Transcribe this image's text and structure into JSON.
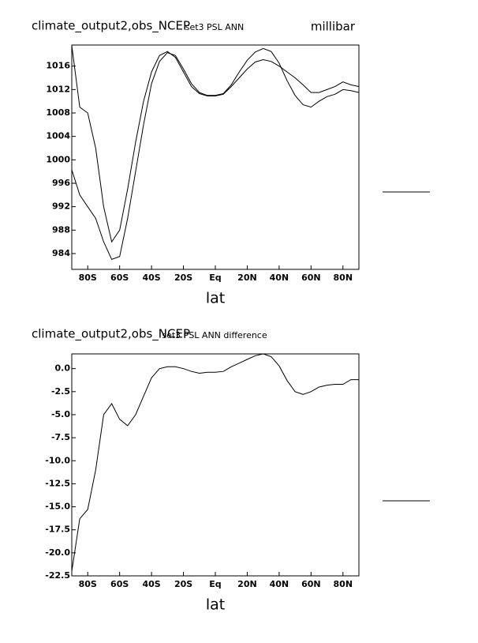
{
  "chart_data": [
    {
      "type": "line",
      "title": "climate_output2,obs_NCEP",
      "subtitle": "set3 PSL ANN",
      "units": "millibar",
      "xlabel": "lat",
      "x": [
        -90,
        -85,
        -80,
        -75,
        -70,
        -65,
        -60,
        -55,
        -50,
        -45,
        -40,
        -35,
        -30,
        -25,
        -20,
        -15,
        -10,
        -5,
        0,
        5,
        10,
        15,
        20,
        25,
        30,
        35,
        40,
        45,
        50,
        55,
        60,
        65,
        70,
        75,
        80,
        85,
        90
      ],
      "series": [
        {
          "color": "#000000",
          "values": [
            1019.5,
            1009,
            1008,
            1002,
            992,
            986,
            988,
            995,
            1003,
            1010,
            1015,
            1017.8,
            1018.5,
            1017.5,
            1015,
            1012.5,
            1011.3,
            1010.9,
            1010.9,
            1011.2,
            1012.5,
            1014,
            1015.5,
            1016.7,
            1017.1,
            1016.8,
            1016,
            1015,
            1014,
            1012.8,
            1011.5,
            1011.5,
            1012,
            1012.5,
            1013.3,
            1012.8,
            1012.5
          ]
        },
        {
          "color": "#000000",
          "values": [
            998.3,
            994,
            992,
            990,
            986,
            983,
            983.5,
            990,
            998,
            1006,
            1013,
            1016.8,
            1018.3,
            1017.8,
            1015.5,
            1013,
            1011.5,
            1011,
            1011,
            1011.3,
            1012.8,
            1015,
            1017,
            1018.4,
            1019,
            1018.5,
            1016.5,
            1013.5,
            1011,
            1009.4,
            1009,
            1010,
            1010.8,
            1011.2,
            1012,
            1011.8,
            1011.5
          ]
        }
      ],
      "xlim": [
        -90,
        90
      ],
      "xticks": [
        {
          "value": -80,
          "label": "80S"
        },
        {
          "value": -60,
          "label": "60S"
        },
        {
          "value": -40,
          "label": "40S"
        },
        {
          "value": -20,
          "label": "20S"
        },
        {
          "value": 0,
          "label": "Eq"
        },
        {
          "value": 20,
          "label": "20N"
        },
        {
          "value": 40,
          "label": "40N"
        },
        {
          "value": 60,
          "label": "60N"
        },
        {
          "value": 80,
          "label": "80N"
        }
      ],
      "ylim": [
        981.3,
        1019.6
      ],
      "yticks": [
        984,
        988,
        992,
        996,
        1000,
        1004,
        1008,
        1012,
        1016
      ]
    },
    {
      "type": "line",
      "title": "climate_output2,obs_NCEP",
      "subtitle": "set3 PSL ANN difference",
      "xlabel": "lat",
      "x": [
        -90,
        -85,
        -80,
        -75,
        -70,
        -65,
        -60,
        -55,
        -50,
        -45,
        -40,
        -35,
        -30,
        -25,
        -20,
        -15,
        -10,
        -5,
        0,
        5,
        10,
        15,
        20,
        25,
        30,
        35,
        40,
        45,
        50,
        55,
        60,
        65,
        70,
        75,
        80,
        85,
        90
      ],
      "series": [
        {
          "color": "#000000",
          "values": [
            -22,
            -16.3,
            -15.3,
            -11,
            -5,
            -3.8,
            -5.5,
            -6.2,
            -5,
            -3,
            -1,
            0,
            0.2,
            0.2,
            0,
            -0.3,
            -0.5,
            -0.4,
            -0.4,
            -0.3,
            0.2,
            0.6,
            1.0,
            1.4,
            1.6,
            1.3,
            0.3,
            -1.3,
            -2.5,
            -2.8,
            -2.5,
            -2,
            -1.8,
            -1.7,
            -1.7,
            -1.2,
            -1.2
          ]
        }
      ],
      "xlim": [
        -90,
        90
      ],
      "xticks": [
        {
          "value": -80,
          "label": "80S"
        },
        {
          "value": -60,
          "label": "60S"
        },
        {
          "value": -40,
          "label": "40S"
        },
        {
          "value": -20,
          "label": "20S"
        },
        {
          "value": 0,
          "label": "Eq"
        },
        {
          "value": 20,
          "label": "20N"
        },
        {
          "value": 40,
          "label": "40N"
        },
        {
          "value": 60,
          "label": "60N"
        },
        {
          "value": 80,
          "label": "80N"
        }
      ],
      "ylim": [
        -22.5,
        1.6
      ],
      "yticks": [
        {
          "value": 0,
          "label": "0.0"
        },
        -2.5,
        {
          "value": -5,
          "label": "-5.0"
        },
        -7.5,
        {
          "value": -10,
          "label": "-10.0"
        },
        -12.5,
        {
          "value": -15,
          "label": "-15.0"
        },
        -17.5,
        {
          "value": -20,
          "label": "-20.0"
        },
        -22.5
      ]
    }
  ]
}
